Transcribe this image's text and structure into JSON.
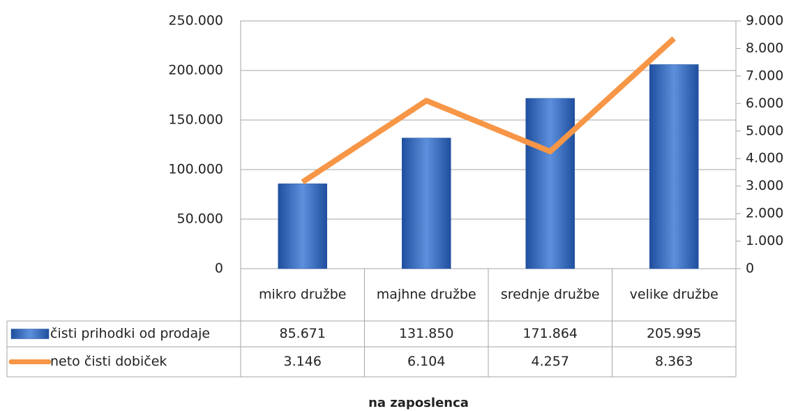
{
  "chart_data": {
    "type": "bar",
    "x_label": "na zaposlenca",
    "categories": [
      "mikro družbe",
      "majhne družbe",
      "srednje družbe",
      "velike družbe"
    ],
    "series": [
      {
        "name": "čisti prihodki od prodaje",
        "type": "bar",
        "color": "#3a6fc4",
        "values": [
          85671,
          131850,
          171864,
          205995
        ],
        "value_labels": [
          "85.671",
          "131.850",
          "171.864",
          "205.995"
        ]
      },
      {
        "name": "neto čisti dobiček",
        "type": "line",
        "axis": "y2",
        "color": "#f79646",
        "values": [
          3146,
          6104,
          4257,
          8363
        ],
        "value_labels": [
          "3.146",
          "6.104",
          "4.257",
          "8.363"
        ]
      }
    ],
    "ylim": [
      0,
      250000
    ],
    "yticks": [
      0,
      {
        "value": 50000,
        "label": "50.000"
      },
      {
        "value": 100000,
        "label": "100.000"
      },
      {
        "value": 150000,
        "label": "150.000"
      },
      {
        "value": 200000,
        "label": "200.000"
      },
      {
        "value": 250000,
        "label": "250.000"
      }
    ],
    "y2lim": [
      0,
      9000
    ],
    "y2ticks": [
      0,
      {
        "value": 1000,
        "label": "1.000"
      },
      {
        "value": 2000,
        "label": "2.000"
      },
      {
        "value": 3000,
        "label": "3.000"
      },
      {
        "value": 4000,
        "label": "4.000"
      },
      {
        "value": 5000,
        "label": "5.000"
      },
      {
        "value": 6000,
        "label": "6.000"
      },
      {
        "value": 7000,
        "label": "7.000"
      },
      {
        "value": 8000,
        "label": "8.000"
      },
      {
        "value": 9000,
        "label": "9.000"
      }
    ],
    "grid": true
  }
}
